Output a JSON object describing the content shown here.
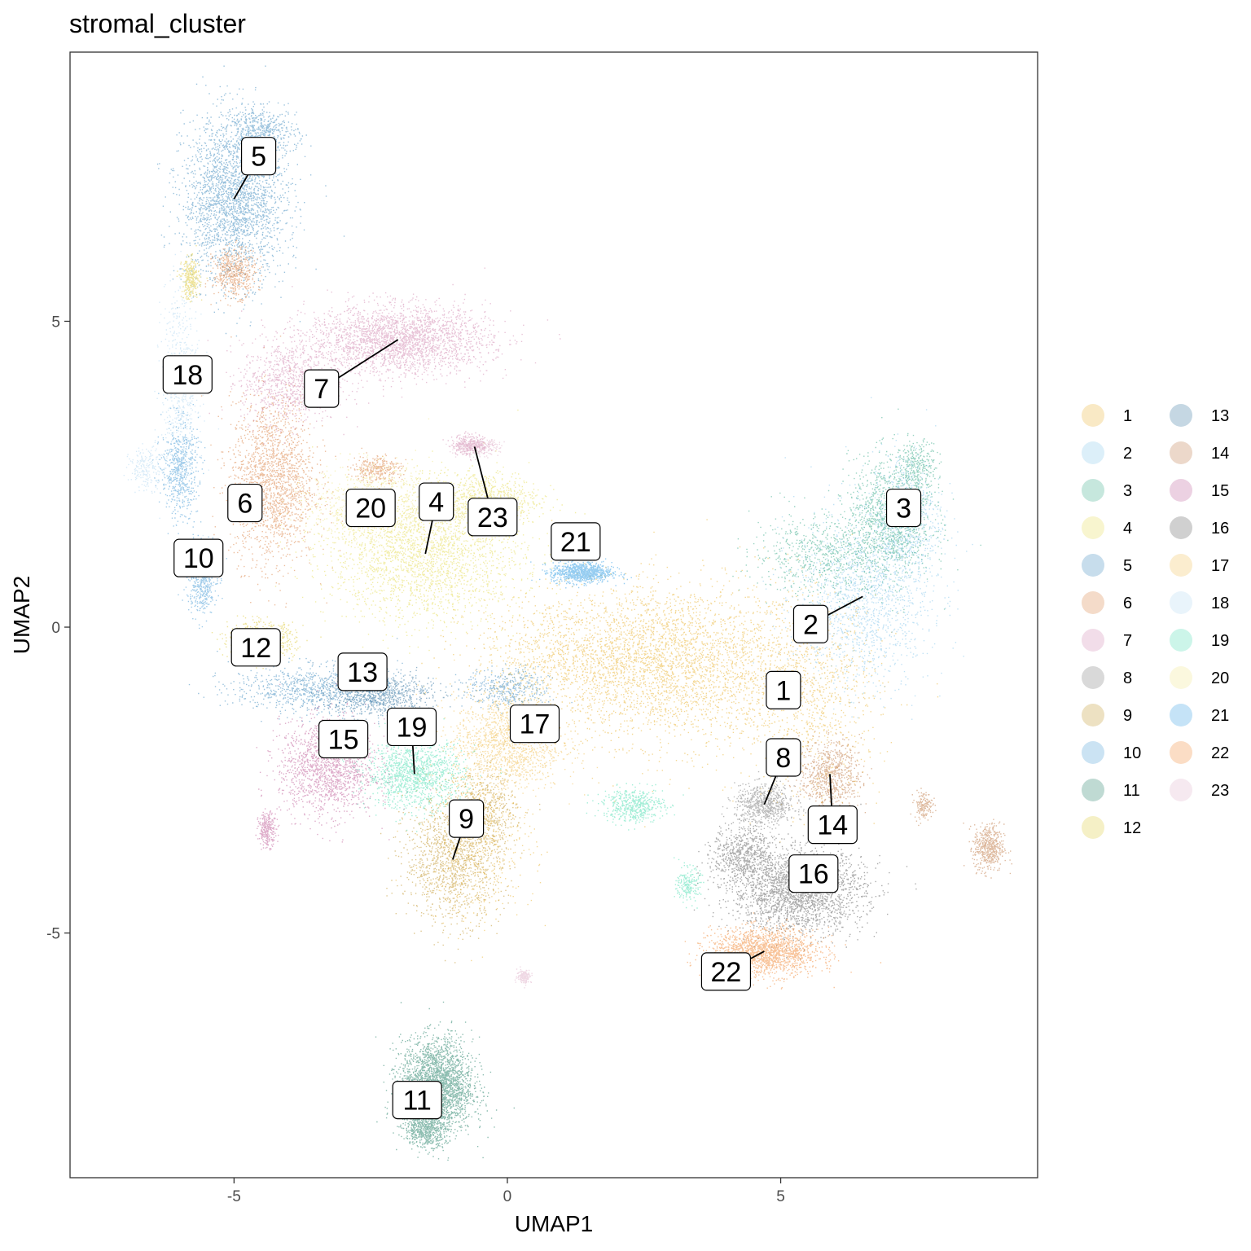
{
  "chart_data": {
    "type": "scatter",
    "title": "stromal_cluster",
    "xlabel": "UMAP1",
    "ylabel": "UMAP2",
    "xlim": [
      -8.0,
      9.7
    ],
    "ylim": [
      -9.0,
      9.4
    ],
    "x_ticks": [
      {
        "value": -5,
        "label": "-5"
      },
      {
        "value": 0,
        "label": "0"
      },
      {
        "value": 5,
        "label": "5"
      }
    ],
    "y_ticks": [
      {
        "value": 5,
        "label": "5"
      },
      {
        "value": 0,
        "label": "0"
      },
      {
        "value": -5,
        "label": "-5"
      }
    ],
    "grid": false,
    "legend_position": "right",
    "legend_columns": 2,
    "clusters": [
      {
        "name": "1",
        "color": "#E6A817",
        "label_pos": [
          5.05,
          -1.03
        ],
        "blobs": [
          [
            3.2,
            -0.6,
            2.2,
            1.2,
            2600
          ],
          [
            1.5,
            -0.5,
            2.0,
            0.9,
            1400
          ],
          [
            5.5,
            -1.2,
            1.2,
            1.5,
            900
          ],
          [
            -0.5,
            -3.5,
            0.9,
            1.2,
            500
          ]
        ]
      },
      {
        "name": "2",
        "color": "#73BFE8",
        "label_pos": [
          5.55,
          0.05
        ],
        "blobs": [
          [
            6.5,
            0.5,
            1.1,
            1.3,
            1500
          ],
          [
            7.3,
            1.8,
            0.6,
            1.0,
            600
          ]
        ]
      },
      {
        "name": "3",
        "color": "#1A9E77",
        "label_pos": [
          7.25,
          1.95
        ],
        "blobs": [
          [
            7.0,
            1.8,
            0.7,
            0.9,
            1200
          ],
          [
            7.5,
            2.6,
            0.3,
            0.4,
            300
          ],
          [
            5.8,
            1.2,
            1.2,
            0.6,
            700
          ]
        ]
      },
      {
        "name": "4",
        "color": "#E2D63E",
        "label_pos": [
          -1.3,
          2.05
        ],
        "blobs": [
          [
            -1.5,
            1.2,
            1.6,
            1.0,
            2400
          ],
          [
            -0.4,
            2.1,
            0.9,
            0.4,
            700
          ]
        ]
      },
      {
        "name": "5",
        "color": "#1F78B4",
        "label_pos": [
          -4.55,
          7.7
        ],
        "blobs": [
          [
            -5.0,
            7.0,
            0.85,
            1.2,
            2600
          ],
          [
            -4.5,
            8.1,
            0.6,
            0.35,
            500
          ],
          [
            -3.5,
            -1.0,
            1.4,
            0.35,
            900
          ],
          [
            0.0,
            -1.0,
            0.7,
            0.3,
            400
          ]
        ]
      },
      {
        "name": "6",
        "color": "#D46E28",
        "label_pos": [
          -4.8,
          2.03
        ],
        "blobs": [
          [
            -4.3,
            2.4,
            0.7,
            1.2,
            1800
          ],
          [
            -5.0,
            5.8,
            0.35,
            0.35,
            500
          ],
          [
            -2.4,
            2.6,
            0.4,
            0.2,
            300
          ]
        ]
      },
      {
        "name": "7",
        "color": "#CC79A7",
        "label_pos": [
          -3.4,
          3.9
        ],
        "blobs": [
          [
            -2.0,
            4.7,
            1.5,
            0.5,
            2600
          ],
          [
            -4.0,
            4.0,
            0.8,
            0.6,
            900
          ],
          [
            -0.7,
            3.0,
            0.3,
            0.15,
            250
          ]
        ]
      },
      {
        "name": "8",
        "color": "#666666",
        "label_pos": [
          5.05,
          -2.13
        ],
        "blobs": [
          [
            4.7,
            -2.9,
            0.5,
            0.3,
            700
          ]
        ]
      },
      {
        "name": "9",
        "color": "#B8860B",
        "label_pos": [
          -0.75,
          -3.13
        ],
        "blobs": [
          [
            -1.0,
            -3.8,
            0.8,
            0.9,
            1300
          ],
          [
            -0.4,
            -3.0,
            0.5,
            0.6,
            500
          ]
        ]
      },
      {
        "name": "10",
        "color": "#2F8FD0",
        "label_pos": [
          -5.65,
          1.13
        ],
        "blobs": [
          [
            -5.6,
            0.8,
            0.25,
            0.5,
            500
          ],
          [
            -6.0,
            2.6,
            0.3,
            0.7,
            600
          ]
        ]
      },
      {
        "name": "11",
        "color": "#006D4F",
        "label_pos": [
          -1.65,
          -7.73
        ],
        "blobs": [
          [
            -1.3,
            -7.5,
            0.6,
            0.7,
            2600
          ],
          [
            -1.5,
            -8.2,
            0.35,
            0.25,
            500
          ]
        ]
      },
      {
        "name": "12",
        "color": "#D9C21C",
        "label_pos": [
          -4.6,
          -0.33
        ],
        "blobs": [
          [
            -4.5,
            -0.2,
            0.55,
            0.25,
            700
          ],
          [
            -5.8,
            5.7,
            0.15,
            0.3,
            300
          ]
        ]
      },
      {
        "name": "13",
        "color": "#175E8E",
        "label_pos": [
          -2.65,
          -0.73
        ],
        "blobs": [
          [
            -2.4,
            -1.1,
            0.9,
            0.3,
            800
          ]
        ]
      },
      {
        "name": "14",
        "color": "#B5652A",
        "label_pos": [
          5.95,
          -3.23
        ],
        "blobs": [
          [
            5.9,
            -2.4,
            0.5,
            0.5,
            700
          ],
          [
            8.8,
            -3.6,
            0.25,
            0.35,
            500
          ],
          [
            7.6,
            -2.9,
            0.15,
            0.2,
            150
          ]
        ]
      },
      {
        "name": "15",
        "color": "#B5468A",
        "label_pos": [
          -3.0,
          -1.83
        ],
        "blobs": [
          [
            -3.3,
            -2.3,
            0.8,
            0.7,
            1500
          ],
          [
            -4.4,
            -3.3,
            0.15,
            0.25,
            250
          ]
        ]
      },
      {
        "name": "16",
        "color": "#444444",
        "label_pos": [
          5.6,
          -4.03
        ],
        "blobs": [
          [
            5.3,
            -4.3,
            1.1,
            0.6,
            2400
          ],
          [
            4.3,
            -3.7,
            0.5,
            0.4,
            600
          ]
        ]
      },
      {
        "name": "17",
        "color": "#F0B840",
        "label_pos": [
          0.5,
          -1.58
        ],
        "blobs": [
          [
            0.0,
            -1.9,
            0.9,
            0.7,
            1400
          ]
        ]
      },
      {
        "name": "18",
        "color": "#A9D3F0",
        "label_pos": [
          -5.85,
          4.13
        ],
        "blobs": [
          [
            -6.0,
            4.0,
            0.3,
            1.5,
            600
          ],
          [
            -6.6,
            2.6,
            0.3,
            0.3,
            200
          ]
        ]
      },
      {
        "name": "19",
        "color": "#33D9A6",
        "label_pos": [
          -1.75,
          -1.63
        ],
        "blobs": [
          [
            -1.7,
            -2.4,
            0.8,
            0.5,
            1300
          ],
          [
            2.3,
            -2.9,
            0.5,
            0.25,
            500
          ],
          [
            3.3,
            -4.2,
            0.2,
            0.25,
            200
          ]
        ]
      },
      {
        "name": "20",
        "color": "#EEE27A",
        "label_pos": [
          -2.5,
          1.95
        ],
        "blobs": [
          [
            -2.5,
            2.0,
            1.0,
            0.6,
            900
          ]
        ]
      },
      {
        "name": "21",
        "color": "#1791E0",
        "label_pos": [
          1.25,
          1.4
        ],
        "blobs": [
          [
            1.35,
            0.9,
            0.5,
            0.15,
            900
          ]
        ]
      },
      {
        "name": "22",
        "color": "#F07818",
        "label_pos": [
          4.0,
          -5.63
        ],
        "blobs": [
          [
            4.7,
            -5.3,
            0.9,
            0.35,
            1700
          ]
        ]
      },
      {
        "name": "23",
        "color": "#DBA8C4",
        "label_pos": [
          -0.27,
          1.8
        ],
        "blobs": [
          [
            -0.6,
            2.95,
            0.4,
            0.12,
            300
          ],
          [
            0.3,
            -5.7,
            0.12,
            0.1,
            150
          ]
        ]
      }
    ]
  }
}
